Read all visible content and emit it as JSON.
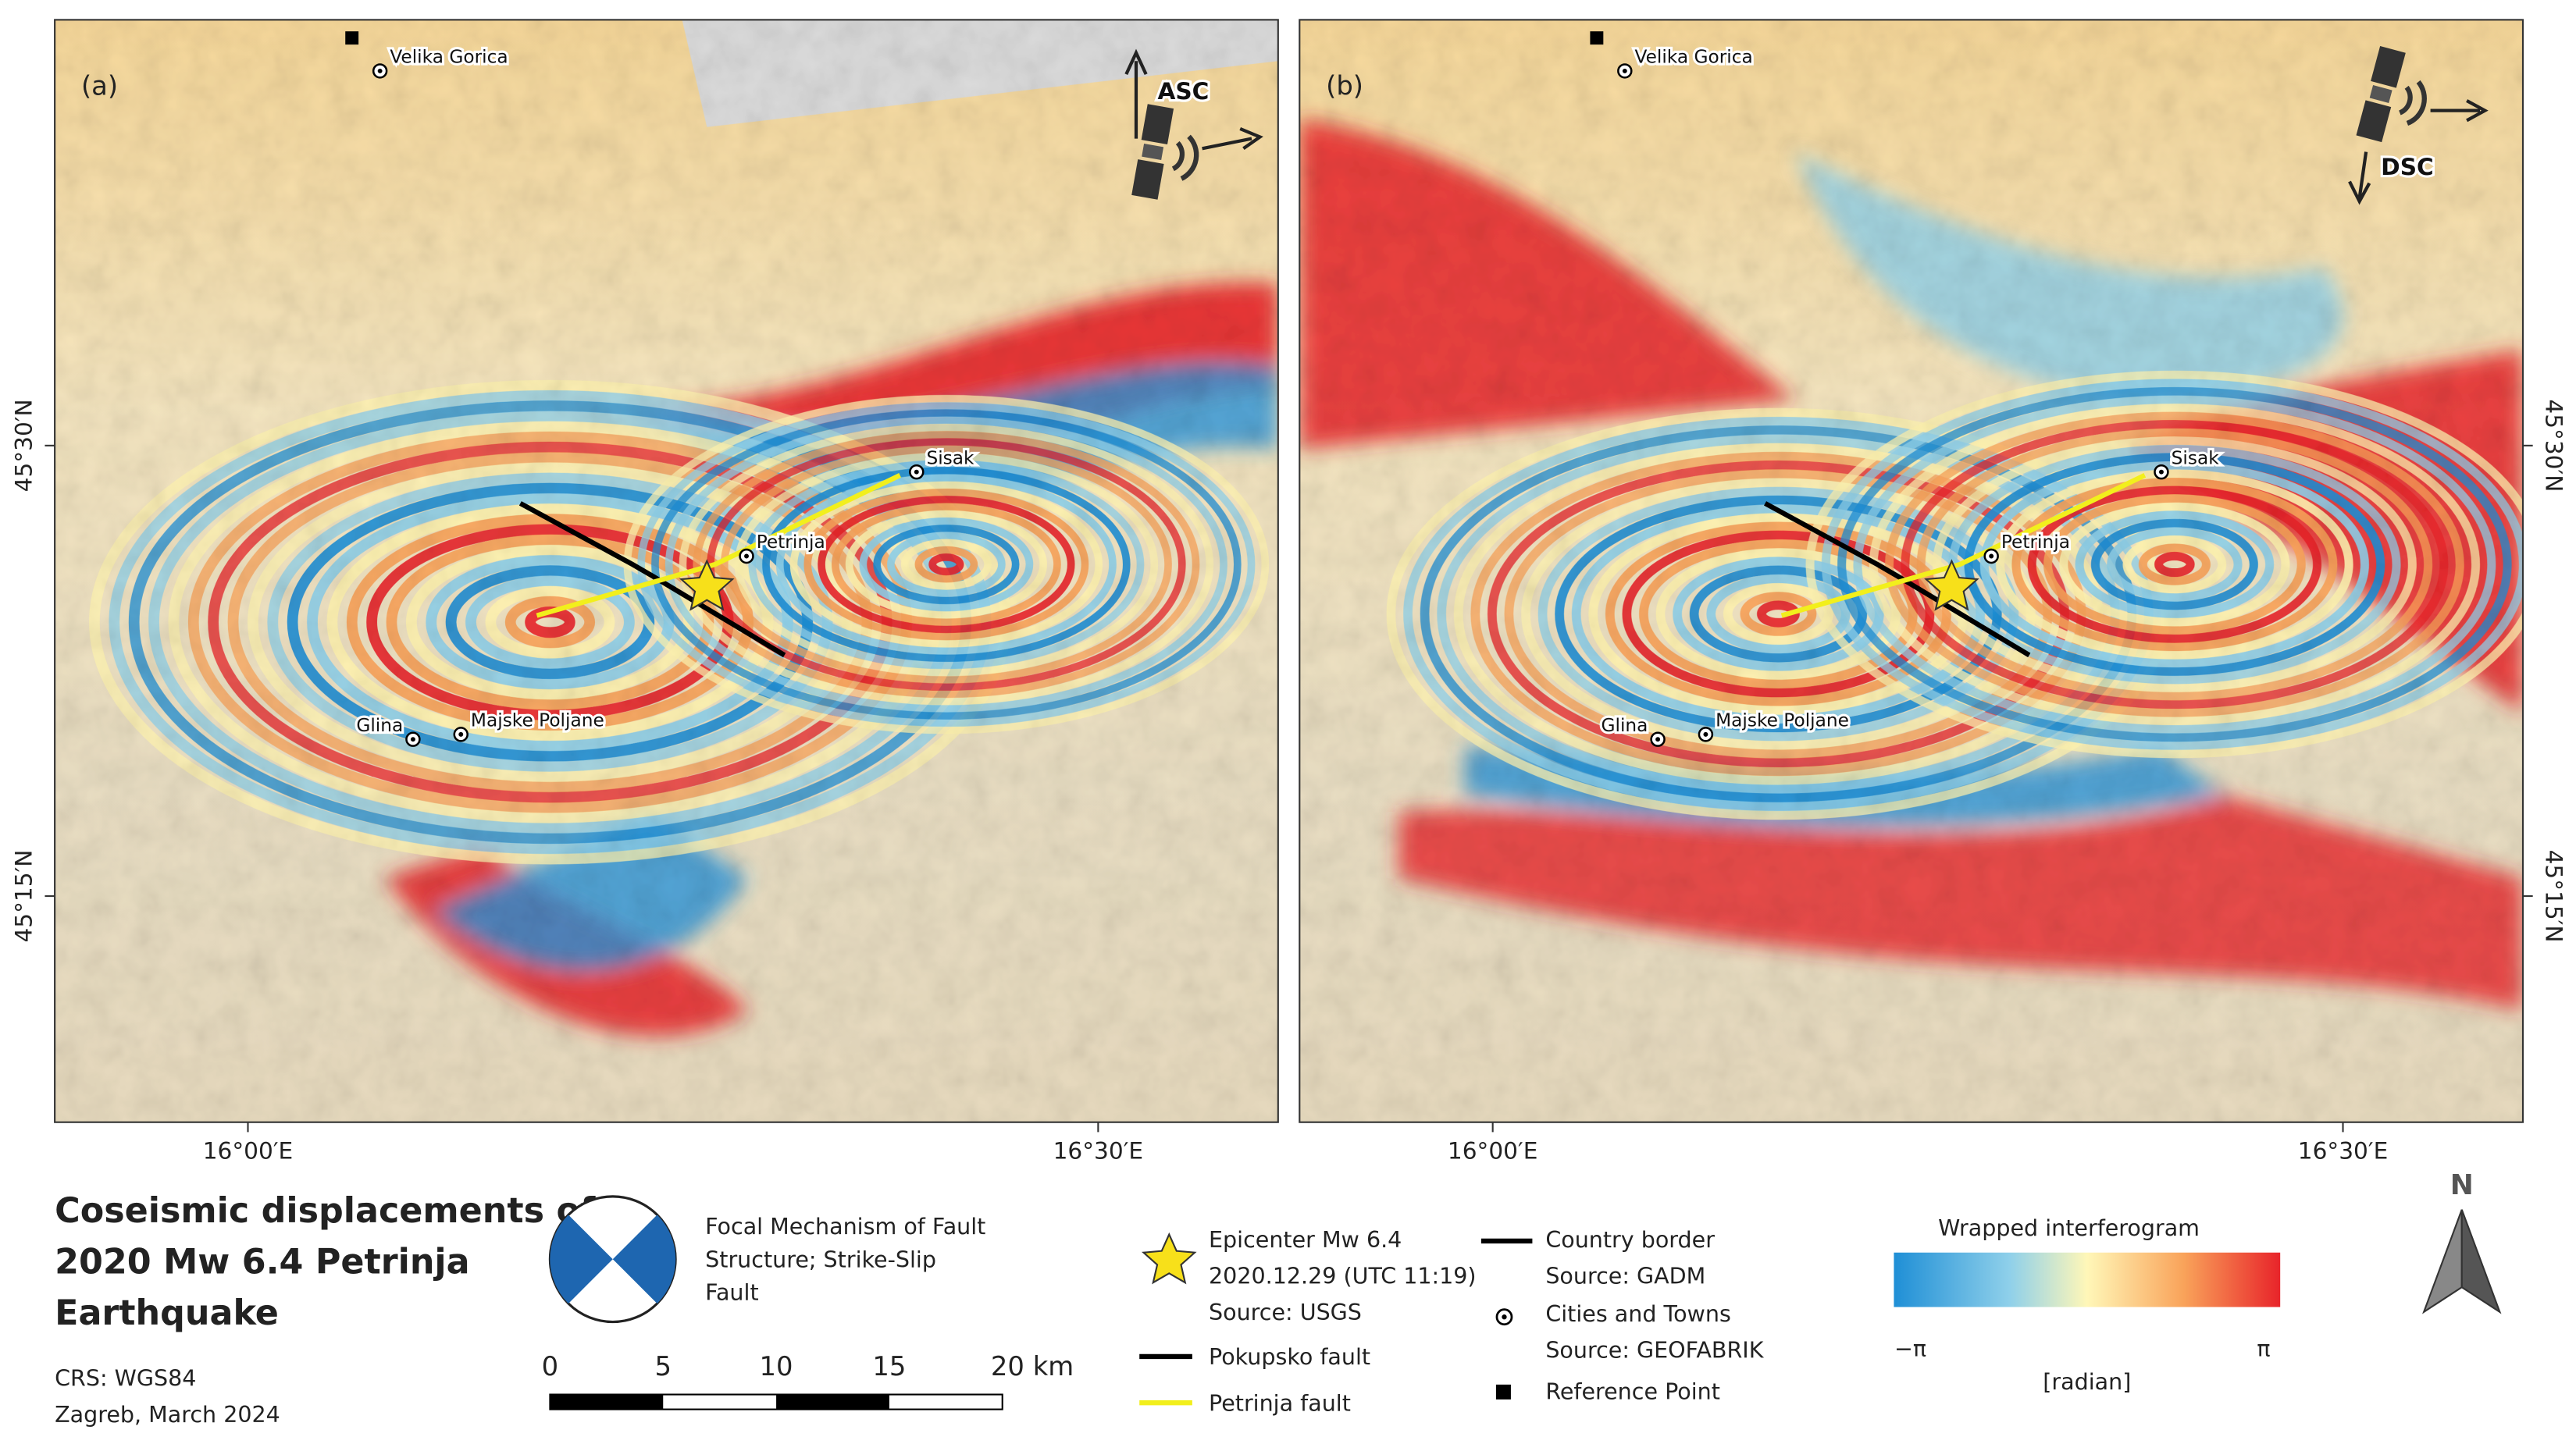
{
  "panels": [
    {
      "label": "(a)",
      "orbit": "ASC",
      "cities": [
        "Velika Gorica",
        "Sisak",
        "Petrinja",
        "Glina",
        "Majske Poljane"
      ],
      "x_labels": [
        "16°00′E",
        "16°30′E"
      ],
      "y_labels": [
        "45°30′N",
        "45°15′N"
      ]
    },
    {
      "label": "(b)",
      "orbit": "DSC",
      "cities": [
        "Velika Gorica",
        "Sisak",
        "Petrinja",
        "Glina",
        "Majske Poljane"
      ],
      "x_labels": [
        "16°00′E",
        "16°30′E"
      ],
      "y_labels": [
        "45°30′N",
        "45°15′N"
      ]
    }
  ],
  "title": [
    "Coseismic displacements of",
    "2020 Mw 6.4 Petrinja",
    "Earthquake"
  ],
  "crs": "CRS: WGS84",
  "place_date": "Zagreb, March 2024",
  "focal_mechanism": [
    "Focal Mechanism of Fault",
    "Structure; Strike-Slip",
    "Fault"
  ],
  "scale_bar": [
    "0",
    "5",
    "10",
    "15",
    "20 km"
  ],
  "legend": {
    "epicenter": [
      "Epicenter Mw 6.4",
      "2020.12.29 (UTC 11:19)",
      "Source: USGS"
    ],
    "pokupsko": "Pokupsko fault",
    "petrinja": "Petrinja fault",
    "border": [
      "Country border",
      "Source: GADM"
    ],
    "cities": [
      "Cities and Towns",
      "Source: GEOFABRIK"
    ],
    "reference": "Reference Point"
  },
  "colorbar": {
    "title": "Wrapped interferogram",
    "min": "−π",
    "max": "π",
    "unit": "[radian]"
  },
  "north": "N"
}
